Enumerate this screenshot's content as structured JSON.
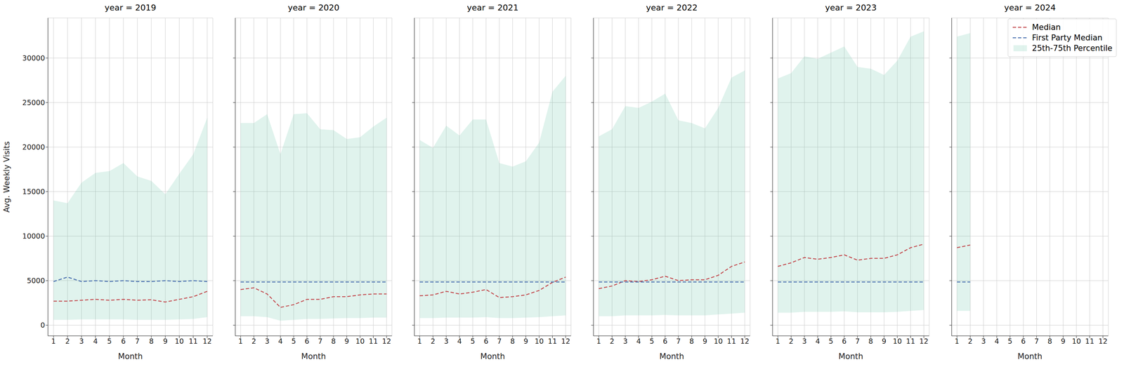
{
  "chart_data": [
    {
      "type": "line",
      "title": "year = 2019",
      "x_label": "Month",
      "y_label": "Avg. Weekly Visits",
      "grid": true,
      "x": [
        1,
        2,
        3,
        4,
        5,
        6,
        7,
        8,
        9,
        10,
        11,
        12
      ],
      "xlim": [
        0.6,
        12.4
      ],
      "xticks": [
        1,
        2,
        3,
        4,
        5,
        6,
        7,
        8,
        9,
        10,
        11,
        12
      ],
      "ylim": [
        -1200,
        34500
      ],
      "yticks": [
        0,
        5000,
        10000,
        15000,
        20000,
        25000,
        30000
      ],
      "series": [
        {
          "name": "Median",
          "type": "line",
          "color": "#c44e52",
          "line_style": "dashed",
          "values": [
            2700,
            2700,
            2800,
            2900,
            2800,
            2900,
            2800,
            2850,
            2600,
            2900,
            3200,
            3800
          ]
        },
        {
          "name": "First Party Median",
          "type": "line",
          "color": "#4c72b0",
          "line_style": "dashed",
          "values": [
            4900,
            5400,
            4900,
            5000,
            4900,
            5000,
            4900,
            4900,
            5000,
            4900,
            5000,
            4900
          ]
        },
        {
          "name": "25th-75th Percentile",
          "type": "area",
          "color": "#66c2a5",
          "lower": [
            600,
            600,
            650,
            650,
            650,
            650,
            600,
            600,
            600,
            650,
            700,
            900
          ],
          "upper": [
            14000,
            13700,
            16000,
            17100,
            17300,
            18200,
            16700,
            16200,
            14700,
            17000,
            19200,
            23300
          ]
        }
      ]
    },
    {
      "type": "line",
      "title": "year = 2020",
      "x_label": "Month",
      "grid": true,
      "tick_labels": "x",
      "x": [
        1,
        2,
        3,
        4,
        5,
        6,
        7,
        8,
        9,
        10,
        11,
        12
      ],
      "xlim": [
        0.6,
        12.4
      ],
      "xticks": [
        1,
        2,
        3,
        4,
        5,
        6,
        7,
        8,
        9,
        10,
        11,
        12
      ],
      "ylim": [
        -1200,
        34500
      ],
      "yticks": [
        0,
        5000,
        10000,
        15000,
        20000,
        25000,
        30000
      ],
      "series": [
        {
          "name": "Median",
          "type": "line",
          "color": "#c44e52",
          "line_style": "dashed",
          "values": [
            4000,
            4200,
            3500,
            2000,
            2300,
            2900,
            2900,
            3200,
            3200,
            3400,
            3500,
            3500
          ]
        },
        {
          "name": "First Party Median",
          "type": "line",
          "color": "#4c72b0",
          "line_style": "dashed",
          "values": [
            4850,
            4850,
            4850,
            4850,
            4850,
            4850,
            4850,
            4850,
            4850,
            4850,
            4850,
            4850
          ]
        },
        {
          "name": "25th-75th Percentile",
          "type": "area",
          "color": "#66c2a5",
          "lower": [
            1000,
            1000,
            900,
            500,
            600,
            700,
            700,
            750,
            800,
            800,
            850,
            850
          ],
          "upper": [
            22700,
            22700,
            23700,
            19200,
            23700,
            23800,
            22000,
            21900,
            20900,
            21100,
            22300,
            23300
          ]
        }
      ]
    },
    {
      "type": "line",
      "title": "year = 2021",
      "x_label": "Month",
      "grid": true,
      "tick_labels": "x",
      "x": [
        1,
        2,
        3,
        4,
        5,
        6,
        7,
        8,
        9,
        10,
        11,
        12
      ],
      "xlim": [
        0.6,
        12.4
      ],
      "xticks": [
        1,
        2,
        3,
        4,
        5,
        6,
        7,
        8,
        9,
        10,
        11,
        12
      ],
      "ylim": [
        -1200,
        34500
      ],
      "yticks": [
        0,
        5000,
        10000,
        15000,
        20000,
        25000,
        30000
      ],
      "series": [
        {
          "name": "Median",
          "type": "line",
          "color": "#c44e52",
          "line_style": "dashed",
          "values": [
            3300,
            3400,
            3800,
            3500,
            3700,
            4000,
            3100,
            3200,
            3400,
            3900,
            4800,
            5400
          ]
        },
        {
          "name": "First Party Median",
          "type": "line",
          "color": "#4c72b0",
          "line_style": "dashed",
          "values": [
            4850,
            4850,
            4850,
            4850,
            4850,
            4850,
            4850,
            4850,
            4850,
            4850,
            4850,
            4850
          ]
        },
        {
          "name": "25th-75th Percentile",
          "type": "area",
          "color": "#66c2a5",
          "lower": [
            800,
            800,
            850,
            850,
            850,
            900,
            800,
            800,
            850,
            900,
            1000,
            1100
          ],
          "upper": [
            20800,
            19900,
            22400,
            21300,
            23100,
            23100,
            18200,
            17800,
            18400,
            20500,
            26200,
            28000
          ]
        }
      ]
    },
    {
      "type": "line",
      "title": "year = 2022",
      "x_label": "Month",
      "grid": true,
      "tick_labels": "x",
      "x": [
        1,
        2,
        3,
        4,
        5,
        6,
        7,
        8,
        9,
        10,
        11,
        12
      ],
      "xlim": [
        0.6,
        12.4
      ],
      "xticks": [
        1,
        2,
        3,
        4,
        5,
        6,
        7,
        8,
        9,
        10,
        11,
        12
      ],
      "ylim": [
        -1200,
        34500
      ],
      "yticks": [
        0,
        5000,
        10000,
        15000,
        20000,
        25000,
        30000
      ],
      "series": [
        {
          "name": "Median",
          "type": "line",
          "color": "#c44e52",
          "line_style": "dashed",
          "values": [
            4100,
            4400,
            5000,
            4900,
            5100,
            5500,
            5000,
            5100,
            5100,
            5600,
            6600,
            7100
          ]
        },
        {
          "name": "First Party Median",
          "type": "line",
          "color": "#4c72b0",
          "line_style": "dashed",
          "values": [
            4850,
            4850,
            4850,
            4850,
            4850,
            4850,
            4850,
            4850,
            4850,
            4850,
            4850,
            4850
          ]
        },
        {
          "name": "25th-75th Percentile",
          "type": "area",
          "color": "#66c2a5",
          "lower": [
            1000,
            1000,
            1100,
            1100,
            1100,
            1150,
            1100,
            1100,
            1100,
            1200,
            1300,
            1400
          ],
          "upper": [
            21200,
            22000,
            24600,
            24400,
            25100,
            26000,
            23000,
            22700,
            22100,
            24400,
            27800,
            28600
          ]
        }
      ]
    },
    {
      "type": "line",
      "title": "year = 2023",
      "x_label": "Month",
      "grid": true,
      "tick_labels": "x",
      "x": [
        1,
        2,
        3,
        4,
        5,
        6,
        7,
        8,
        9,
        10,
        11,
        12
      ],
      "xlim": [
        0.6,
        12.4
      ],
      "xticks": [
        1,
        2,
        3,
        4,
        5,
        6,
        7,
        8,
        9,
        10,
        11,
        12
      ],
      "ylim": [
        -1200,
        34500
      ],
      "yticks": [
        0,
        5000,
        10000,
        15000,
        20000,
        25000,
        30000
      ],
      "series": [
        {
          "name": "Median",
          "type": "line",
          "color": "#c44e52",
          "line_style": "dashed",
          "values": [
            6600,
            7000,
            7600,
            7400,
            7600,
            7900,
            7300,
            7500,
            7500,
            7900,
            8700,
            9100
          ]
        },
        {
          "name": "First Party Median",
          "type": "line",
          "color": "#4c72b0",
          "line_style": "dashed",
          "values": [
            4850,
            4850,
            4850,
            4850,
            4850,
            4850,
            4850,
            4850,
            4850,
            4850,
            4850,
            4850
          ]
        },
        {
          "name": "25th-75th Percentile",
          "type": "area",
          "color": "#66c2a5",
          "lower": [
            1400,
            1400,
            1500,
            1500,
            1500,
            1550,
            1450,
            1450,
            1450,
            1500,
            1600,
            1700
          ],
          "upper": [
            27700,
            28300,
            30200,
            29900,
            30600,
            31300,
            29000,
            28800,
            28100,
            29700,
            32400,
            33000
          ]
        }
      ]
    },
    {
      "type": "line",
      "title": "year = 2024",
      "x_label": "Month",
      "grid": true,
      "tick_labels": "x",
      "legend": "upper right",
      "x": [
        1,
        2
      ],
      "xlim": [
        0.6,
        12.4
      ],
      "xticks": [
        1,
        2,
        3,
        4,
        5,
        6,
        7,
        8,
        9,
        10,
        11,
        12
      ],
      "ylim": [
        -1200,
        34500
      ],
      "yticks": [
        0,
        5000,
        10000,
        15000,
        20000,
        25000,
        30000
      ],
      "series": [
        {
          "name": "Median",
          "type": "line",
          "color": "#c44e52",
          "line_style": "dashed",
          "values": [
            8700,
            9000
          ]
        },
        {
          "name": "First Party Median",
          "type": "line",
          "color": "#4c72b0",
          "line_style": "dashed",
          "values": [
            4850,
            4850
          ]
        },
        {
          "name": "25th-75th Percentile",
          "type": "area",
          "color": "#66c2a5",
          "lower": [
            1600,
            1600
          ],
          "upper": [
            32400,
            32800
          ]
        }
      ]
    }
  ]
}
